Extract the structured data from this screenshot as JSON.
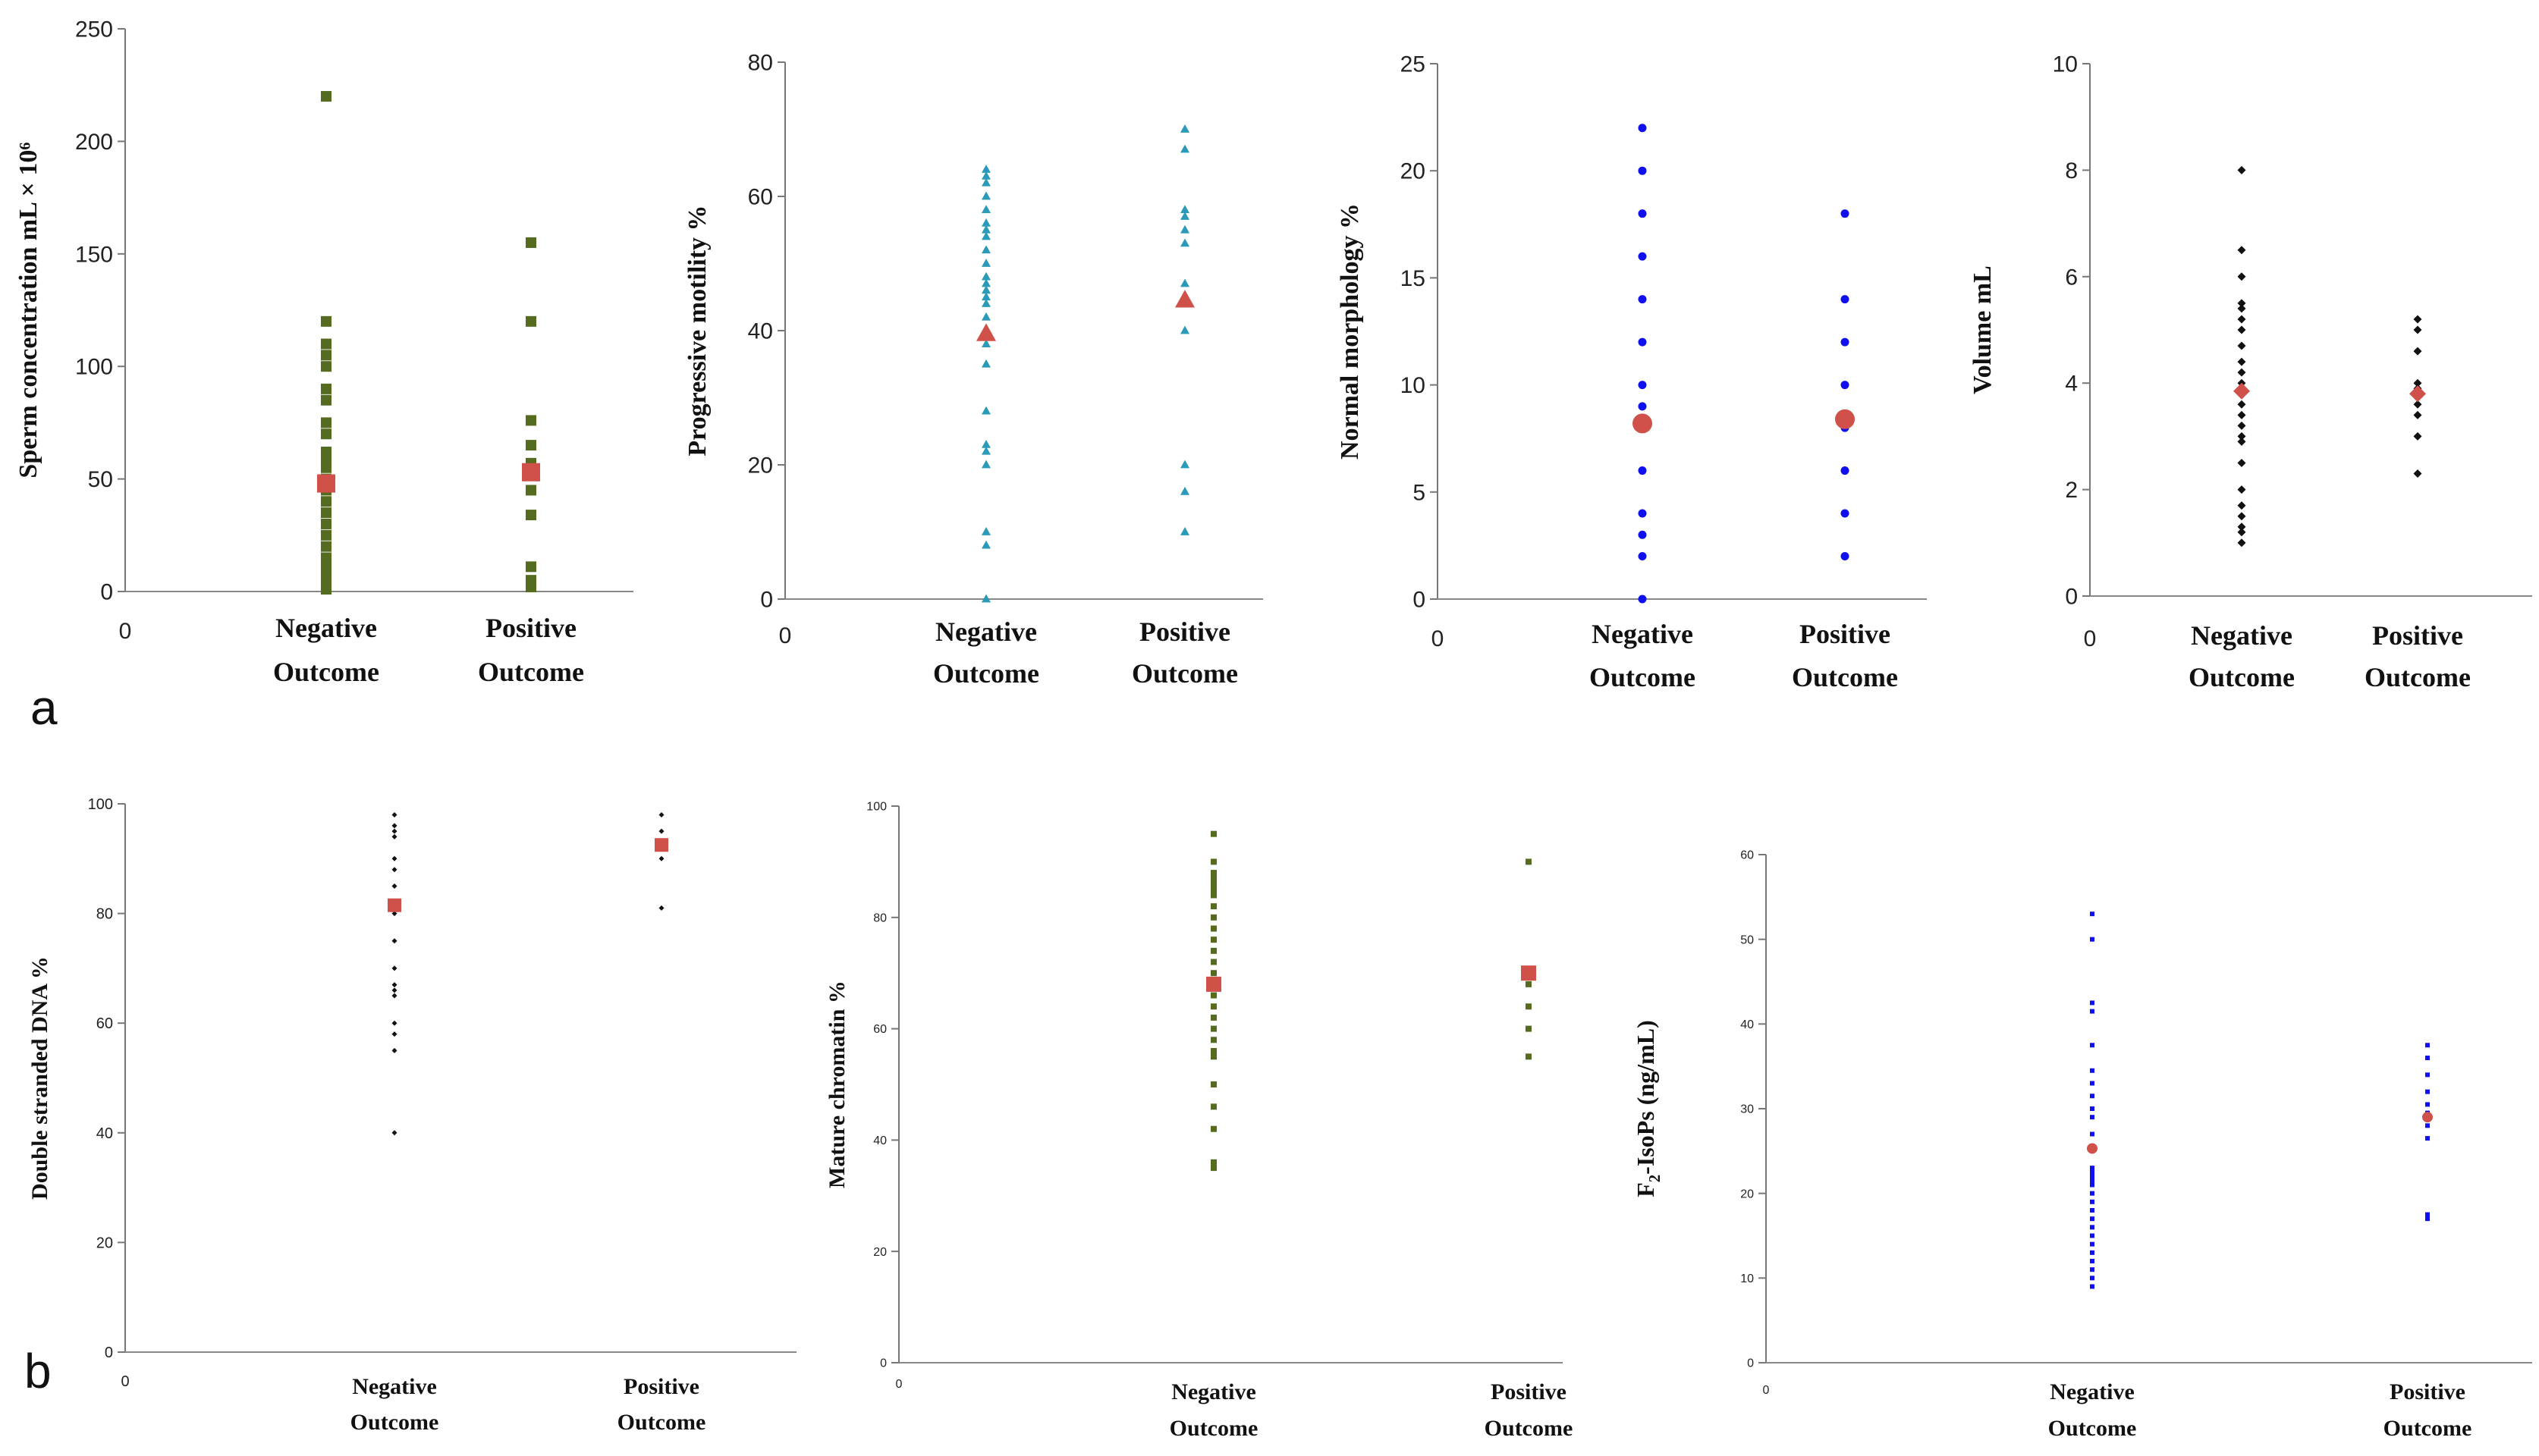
{
  "panel_labels": {
    "a": "a",
    "b": "b"
  },
  "colors": {
    "olive": "#556b1f",
    "teal": "#2a9ab8",
    "blue": "#1010ee",
    "black": "#111111",
    "mean": "#d0504a"
  },
  "chart_data": [
    {
      "id": "conc",
      "type": "scatter",
      "ylabel": "Sperm concentration mL × 10⁶",
      "yticks": [
        0,
        50,
        100,
        150,
        200,
        250
      ],
      "ylim": [
        0,
        250
      ],
      "categories": [
        "Negative Outcome",
        "Positive Outcome"
      ],
      "origin_label": "0",
      "marker": "square",
      "color": "#556b1f",
      "series": [
        {
          "name": "Negative Outcome",
          "values": [
            220,
            120,
            110,
            105,
            100,
            90,
            85,
            75,
            70,
            62,
            60,
            58,
            55,
            50,
            45,
            40,
            35,
            30,
            25,
            20,
            15,
            12,
            10,
            8,
            6,
            5,
            3,
            2,
            1
          ]
        },
        {
          "name": "Positive Outcome",
          "values": [
            155,
            120,
            76,
            65,
            57,
            55,
            45,
            34,
            11,
            5,
            2
          ]
        }
      ],
      "means": [
        48,
        53
      ],
      "mean_marker": "square"
    },
    {
      "id": "motility",
      "type": "scatter",
      "ylabel": "Progressive motility %",
      "yticks": [
        0,
        20,
        40,
        60,
        80
      ],
      "ylim": [
        0,
        80
      ],
      "categories": [
        "Negative Outcome",
        "Positive Outcome"
      ],
      "origin_label": "0",
      "marker": "triangle",
      "color": "#2a9ab8",
      "series": [
        {
          "name": "Negative Outcome",
          "values": [
            64,
            63,
            62,
            60,
            58,
            56,
            55,
            54,
            52,
            50,
            48,
            47,
            46,
            45,
            44,
            42,
            40,
            38,
            35,
            28,
            23,
            22,
            20,
            10,
            8,
            0
          ]
        },
        {
          "name": "Positive Outcome",
          "values": [
            70,
            67,
            58,
            57,
            55,
            53,
            47,
            40,
            20,
            16,
            10
          ]
        }
      ],
      "means": [
        39.5,
        44.5
      ],
      "mean_marker": "triangle"
    },
    {
      "id": "morphology",
      "type": "scatter",
      "ylabel": "Normal morphology %",
      "yticks": [
        0,
        5,
        10,
        15,
        20,
        25
      ],
      "ylim": [
        0,
        25
      ],
      "categories": [
        "Negative Outcome",
        "Positive Outcome"
      ],
      "origin_label": "0",
      "marker": "circle",
      "color": "#1010ee",
      "series": [
        {
          "name": "Negative Outcome",
          "values": [
            22,
            20,
            18,
            16,
            14,
            12,
            10,
            9,
            8,
            6,
            4,
            3,
            2,
            0
          ]
        },
        {
          "name": "Positive Outcome",
          "values": [
            18,
            14,
            12,
            10,
            8,
            6,
            4,
            2
          ]
        }
      ],
      "means": [
        8.2,
        8.4
      ],
      "mean_marker": "circle"
    },
    {
      "id": "volume",
      "type": "scatter",
      "ylabel": "Volume mL",
      "yticks": [
        0,
        2,
        4,
        6,
        8,
        10
      ],
      "ylim": [
        0,
        10
      ],
      "categories": [
        "Negative Outcome",
        "Positive Outcome"
      ],
      "origin_label": "0",
      "marker": "diamond",
      "color": "#111111",
      "series": [
        {
          "name": "Negative Outcome",
          "values": [
            8,
            6.5,
            6,
            5.5,
            5.4,
            5.2,
            5,
            4.7,
            4.4,
            4.2,
            4,
            3.8,
            3.6,
            3.4,
            3.2,
            3,
            2.9,
            2.5,
            2,
            1.7,
            1.5,
            1.3,
            1.2,
            1
          ]
        },
        {
          "name": "Positive Outcome",
          "values": [
            5.2,
            5,
            4.6,
            4,
            3.9,
            3.8,
            3.6,
            3.4,
            3,
            2.3
          ]
        }
      ],
      "means": [
        3.85,
        3.8
      ],
      "mean_marker": "diamond"
    },
    {
      "id": "dsdna",
      "type": "scatter",
      "ylabel": "Double stranded DNA %",
      "yticks": [
        0,
        20,
        40,
        60,
        80,
        100
      ],
      "ylim": [
        0,
        100
      ],
      "categories": [
        "Negative Outcome",
        "Positive Outcome"
      ],
      "origin_label": "0",
      "marker": "diamond",
      "color": "#111111",
      "series": [
        {
          "name": "Negative Outcome",
          "values": [
            98,
            96,
            95,
            94,
            90,
            88,
            85,
            80,
            75,
            70,
            67,
            66,
            65,
            60,
            58,
            55,
            40
          ]
        },
        {
          "name": "Positive Outcome",
          "values": [
            98,
            95,
            90,
            81
          ]
        }
      ],
      "means": [
        81.5,
        92.5
      ],
      "mean_marker": "square"
    },
    {
      "id": "chromatin",
      "type": "scatter",
      "ylabel": "Mature chromatin %",
      "yticks": [
        0,
        20,
        40,
        60,
        80,
        100
      ],
      "ylim": [
        0,
        100
      ],
      "categories": [
        "Negative Outcome",
        "Positive Outcome"
      ],
      "origin_label": "0",
      "marker": "square",
      "color": "#556b1f",
      "series": [
        {
          "name": "Negative Outcome",
          "values": [
            95,
            90,
            88,
            87,
            86,
            85,
            84,
            82,
            80,
            78,
            76,
            74,
            72,
            70,
            68,
            66,
            64,
            62,
            60,
            58,
            56,
            55,
            50,
            46,
            42,
            36,
            35
          ]
        },
        {
          "name": "Positive Outcome",
          "values": [
            90,
            70,
            68,
            64,
            60,
            55
          ]
        }
      ],
      "means": [
        68,
        70
      ],
      "mean_marker": "square"
    },
    {
      "id": "isops",
      "type": "scatter",
      "ylabel_main": "F",
      "ylabel_sub": "2",
      "ylabel_rest": "-IsoPs (ng/mL)",
      "yticks": [
        0,
        10,
        20,
        30,
        40,
        50,
        60
      ],
      "ylim": [
        0,
        60
      ],
      "categories": [
        "Negative Outcome",
        "Positive Outcome"
      ],
      "origin_label": "0",
      "marker": "square",
      "color": "#1010ee",
      "series": [
        {
          "name": "Negative Outcome",
          "values": [
            53,
            50,
            42.5,
            41.5,
            37.5,
            34.5,
            33,
            31.5,
            30,
            29,
            27,
            25,
            23,
            22.5,
            22,
            21.5,
            21,
            20,
            19,
            18,
            17,
            16,
            15,
            14,
            13,
            12,
            11,
            10,
            9
          ]
        },
        {
          "name": "Positive Outcome",
          "values": [
            37.5,
            36,
            34,
            32,
            30.5,
            29.5,
            28,
            26.5,
            17.5,
            17
          ]
        }
      ],
      "means": [
        25.3,
        29
      ],
      "mean_marker": "circle"
    }
  ]
}
